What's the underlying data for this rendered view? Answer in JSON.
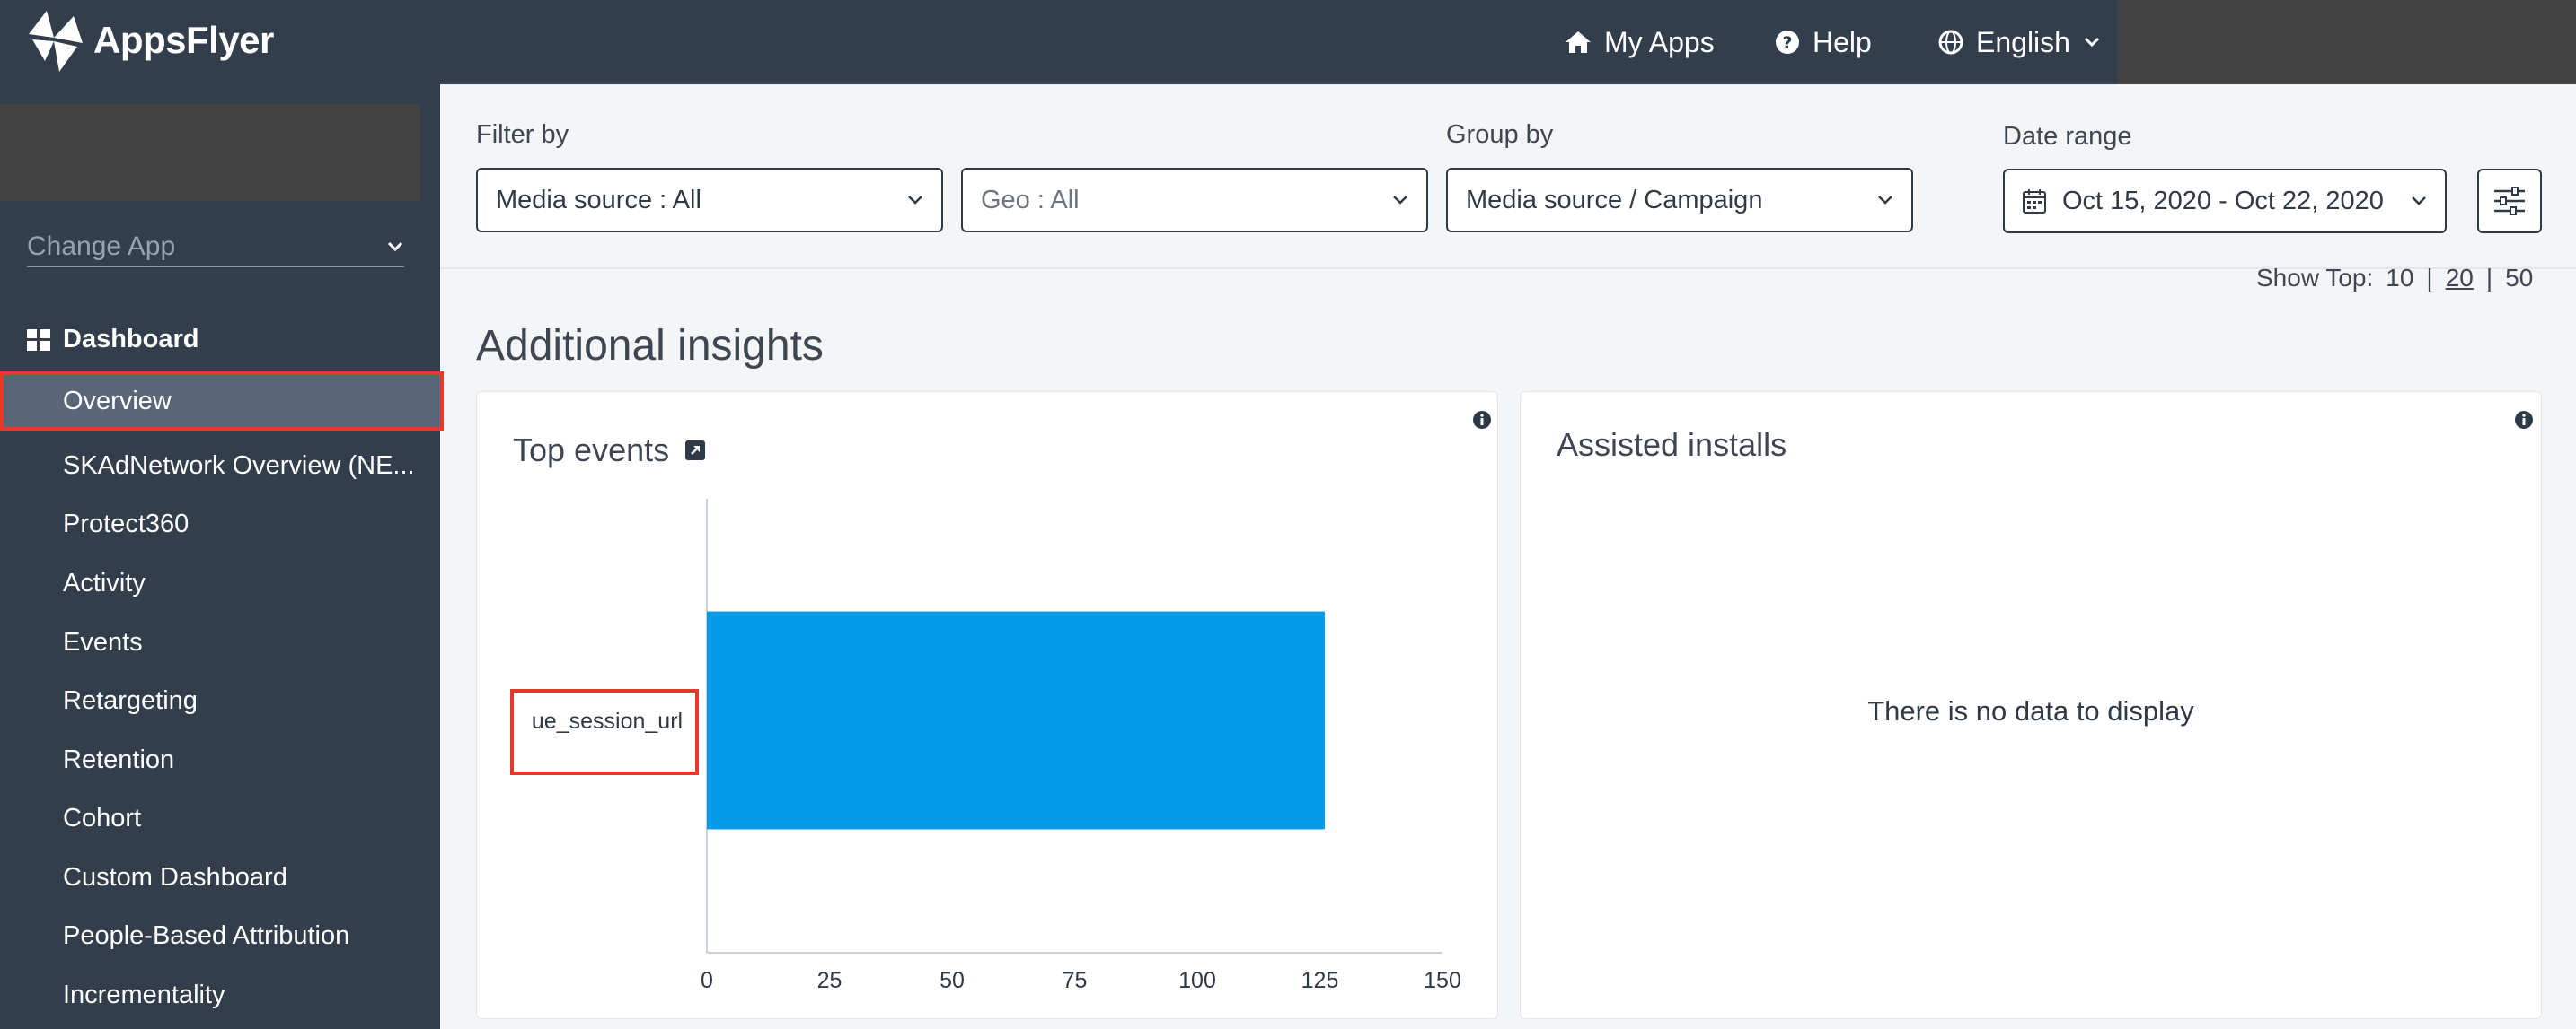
{
  "header": {
    "logo_text": "AppsFlyer",
    "my_apps": "My Apps",
    "help": "Help",
    "language": "English"
  },
  "sidebar": {
    "change_app": "Change App",
    "section": "Dashboard",
    "items": [
      {
        "label": "Overview",
        "active": true
      },
      {
        "label": "SKAdNetwork Overview (NE..."
      },
      {
        "label": "Protect360"
      },
      {
        "label": "Activity"
      },
      {
        "label": "Events"
      },
      {
        "label": "Retargeting"
      },
      {
        "label": "Retention"
      },
      {
        "label": "Cohort"
      },
      {
        "label": "Custom Dashboard"
      },
      {
        "label": "People-Based Attribution"
      },
      {
        "label": "Incrementality"
      }
    ]
  },
  "filters": {
    "filter_by_label": "Filter by",
    "media_source": "Media source : All",
    "geo": "Geo : All",
    "group_by_label": "Group by",
    "group_by": "Media source / Campaign",
    "date_range_label": "Date range",
    "date_range": "Oct 15, 2020 - Oct 22, 2020"
  },
  "show_top": {
    "label": "Show Top:",
    "options": [
      "10",
      "20",
      "50"
    ],
    "selected": "20",
    "separator": "|"
  },
  "page_title": "Additional insights",
  "cards": {
    "top_events": {
      "title": "Top events"
    },
    "assisted_installs": {
      "title": "Assisted installs",
      "empty_message": "There is no data to display"
    }
  },
  "chart_data": {
    "type": "bar",
    "orientation": "horizontal",
    "categories": [
      "ue_session_url"
    ],
    "values": [
      126
    ],
    "xlim": [
      0,
      150
    ],
    "xticks": [
      0,
      25,
      50,
      75,
      100,
      125,
      150
    ],
    "bar_color": "#039be5"
  },
  "colors": {
    "header_bg": "#323e4c",
    "sidebar_active": "#586677",
    "highlight": "#e53a2a",
    "bar": "#039be5"
  }
}
